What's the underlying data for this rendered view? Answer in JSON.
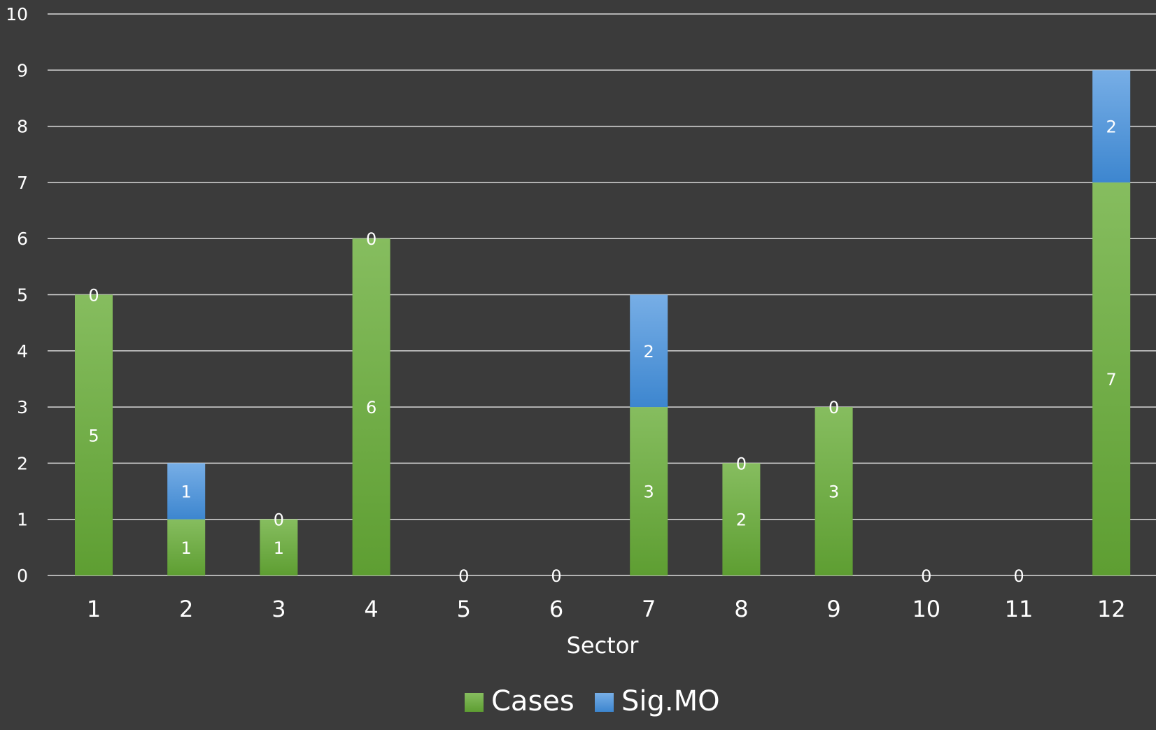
{
  "chart_data": {
    "type": "bar",
    "stacked": true,
    "title": "",
    "xlabel": "Sector",
    "ylabel": "",
    "categories": [
      "1",
      "2",
      "3",
      "4",
      "5",
      "6",
      "7",
      "8",
      "9",
      "10",
      "11",
      "12"
    ],
    "series": [
      {
        "name": "Cases",
        "values": [
          5,
          1,
          1,
          6,
          0,
          0,
          3,
          2,
          3,
          0,
          0,
          7
        ],
        "color": "#6aab3d"
      },
      {
        "name": "Sig.MO",
        "values": [
          0,
          1,
          0,
          0,
          0,
          0,
          2,
          0,
          0,
          0,
          0,
          2
        ],
        "color": "#4a8fd4"
      }
    ],
    "ylim": [
      0,
      10
    ],
    "yticks": [
      0,
      1,
      2,
      3,
      4,
      5,
      6,
      7,
      8,
      9,
      10
    ],
    "grid": true,
    "legend_position": "bottom",
    "data_labels": true
  },
  "colors": {
    "background": "#3b3b3b",
    "gridline": "#d9d9d9",
    "text": "#ffffff",
    "cases_top": "#86bd5f",
    "cases_bottom": "#5e9e32",
    "sigmo_top": "#77aee6",
    "sigmo_bottom": "#3d86cf"
  }
}
